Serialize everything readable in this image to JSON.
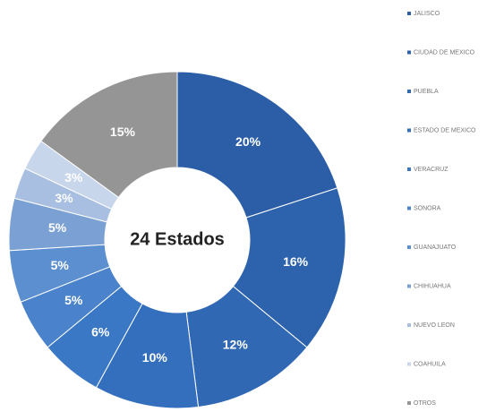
{
  "chart_data": {
    "type": "donut",
    "center_label": "24 Estados",
    "categories": [
      "JALISCO",
      "CIUDAD DE MEXICO",
      "PUEBLA",
      "ESTADO DE MEXICO",
      "VERACRUZ",
      "SONORA",
      "GUANAJUATO",
      "CHIHUAHUA",
      "NUEVO LEON",
      "COAHUILA",
      "OTROS"
    ],
    "values": [
      20,
      16,
      12,
      10,
      6,
      5,
      5,
      5,
      3,
      3,
      15
    ],
    "value_labels": [
      "20%",
      "16%",
      "12%",
      "10%",
      "6%",
      "5%",
      "5%",
      "5%",
      "3%",
      "3%",
      "15%"
    ],
    "colors": [
      "#2b5ea6",
      "#2d62ac",
      "#3068b4",
      "#346fbd",
      "#3a77c5",
      "#4a83cb",
      "#5c8fd0",
      "#7ba1d4",
      "#a8bfe1",
      "#c8d6ec",
      "#959595"
    ],
    "legend": "right"
  }
}
